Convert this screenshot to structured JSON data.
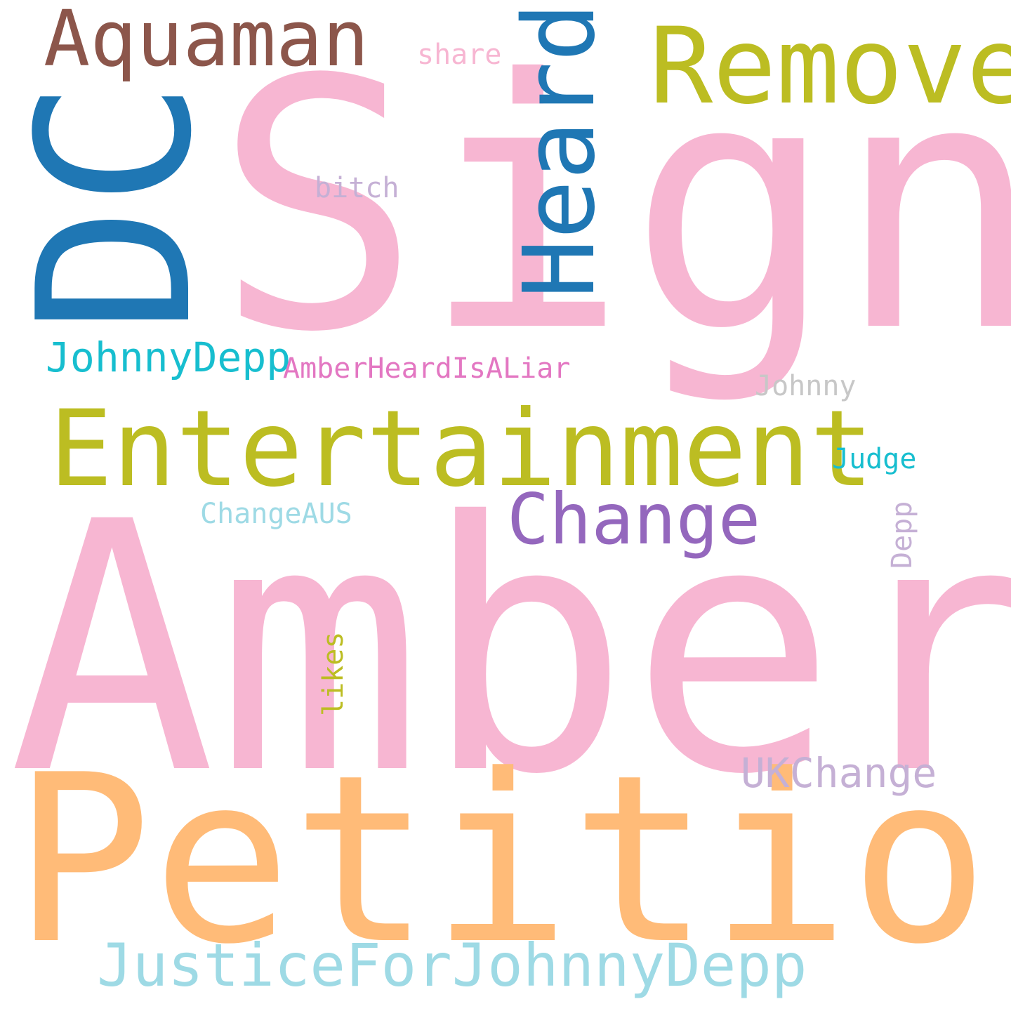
{
  "words": {
    "sign": {
      "text": "Sign",
      "color": "#f7b6d2"
    },
    "amber": {
      "text": "Amber",
      "color": "#f7b6d2"
    },
    "petition": {
      "text": "Petition",
      "color": "#ffbb78"
    },
    "dc": {
      "text": "DC",
      "color": "#1f77b4"
    },
    "entertainment": {
      "text": "Entertainment",
      "color": "#bcbd22"
    },
    "remove": {
      "text": "Remove",
      "color": "#bcbd22"
    },
    "heard": {
      "text": "Heard",
      "color": "#1f77b4"
    },
    "aquaman": {
      "text": "Aquaman",
      "color": "#8c564b"
    },
    "change": {
      "text": "Change",
      "color": "#9467bd"
    },
    "justicefor": {
      "text": "JusticeForJohnnyDepp",
      "color": "#9edae5"
    },
    "johnnydepp": {
      "text": "JohnnyDepp",
      "color": "#17becf"
    },
    "ukchange": {
      "text": "UKChange",
      "color": "#c5b0d5"
    },
    "amberheardisaliar": {
      "text": "AmberHeardIsALiar",
      "color": "#e377c2"
    },
    "johnny": {
      "text": "Johnny",
      "color": "#c7c7c7"
    },
    "judge": {
      "text": "Judge",
      "color": "#17becf"
    },
    "changeaus": {
      "text": "ChangeAUS",
      "color": "#9edae5"
    },
    "share": {
      "text": "share",
      "color": "#f7b6d2"
    },
    "bitch": {
      "text": "bitch",
      "color": "#c5b0d5"
    },
    "depp": {
      "text": "Depp",
      "color": "#c5b0d5"
    },
    "likes": {
      "text": "likes",
      "color": "#bcbd22"
    }
  }
}
